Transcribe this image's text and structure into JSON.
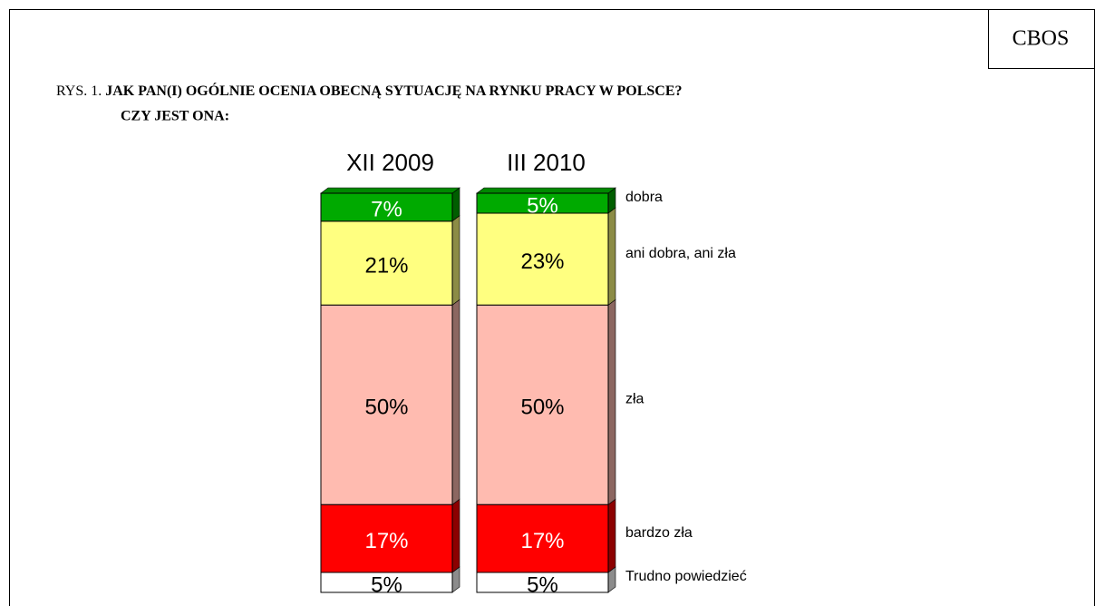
{
  "chart_data": {
    "type": "stacked_bar_3d",
    "source": "CBOS",
    "figure_label": "RYS. 1.",
    "title": "JAK PAN(I) OGÓLNIE OCENIA OBECNĄ SYTUACJĘ NA RYNKU PRACY W POLSCE?",
    "subtitle": "CZY JEST ONA:",
    "categories": [
      "XII 2009",
      "III 2010"
    ],
    "ylim": [
      0,
      100
    ],
    "series": [
      {
        "name": "Trudno powiedzieć",
        "color": "#ffffff",
        "values": [
          5,
          5
        ],
        "value_labels": [
          "5%",
          "5%"
        ]
      },
      {
        "name": "bardzo zła",
        "color": "#ff0000",
        "values": [
          17,
          17
        ],
        "value_labels": [
          "17%",
          "17%"
        ]
      },
      {
        "name": "zła",
        "color": "#ffbbb0",
        "values": [
          50,
          50
        ],
        "value_labels": [
          "50%",
          "50%"
        ]
      },
      {
        "name": "ani dobra, ani zła",
        "color": "#ffff80",
        "values": [
          21,
          23
        ],
        "value_labels": [
          "21%",
          "23%"
        ]
      },
      {
        "name": "dobra",
        "color": "#00aa00",
        "values": [
          7,
          5
        ],
        "value_labels": [
          "7%",
          "5%"
        ]
      }
    ]
  }
}
